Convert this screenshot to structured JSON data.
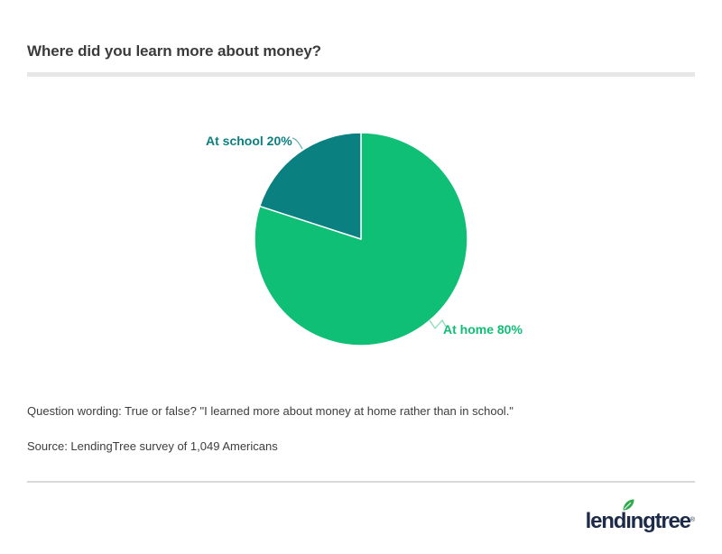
{
  "header": {
    "title": "Where did you learn more about money?"
  },
  "chart_data": {
    "type": "pie",
    "title": "Where did you learn more about money?",
    "categories": [
      "At home",
      "At school"
    ],
    "values": [
      80,
      20
    ],
    "unit": "%",
    "colors": [
      "#0fbf76",
      "#0b8080"
    ],
    "data_labels": [
      {
        "text": "At home 80%",
        "color": "#0fbf76"
      },
      {
        "text": "At school 20%",
        "color": "#0b8080"
      }
    ],
    "connector_colors": [
      "#8adcb9",
      "#6fb0b2"
    ],
    "start_angle": "top",
    "direction": "clockwise",
    "legend_position": "none",
    "grid": false,
    "slice_border_color": "#ffffff"
  },
  "footnotes": {
    "question_wording": "Question wording: True or false? \"I learned more about money at home rather than in school.\"",
    "source": "Source: LendingTree survey of 1,049 Americans"
  },
  "branding": {
    "logo_pre": "lend",
    "logo_i": "ı",
    "logo_post": "ngtree",
    "registered_mark": "®",
    "logo_color": "#1c2b4a",
    "leaf_color": "#2fad4e"
  }
}
